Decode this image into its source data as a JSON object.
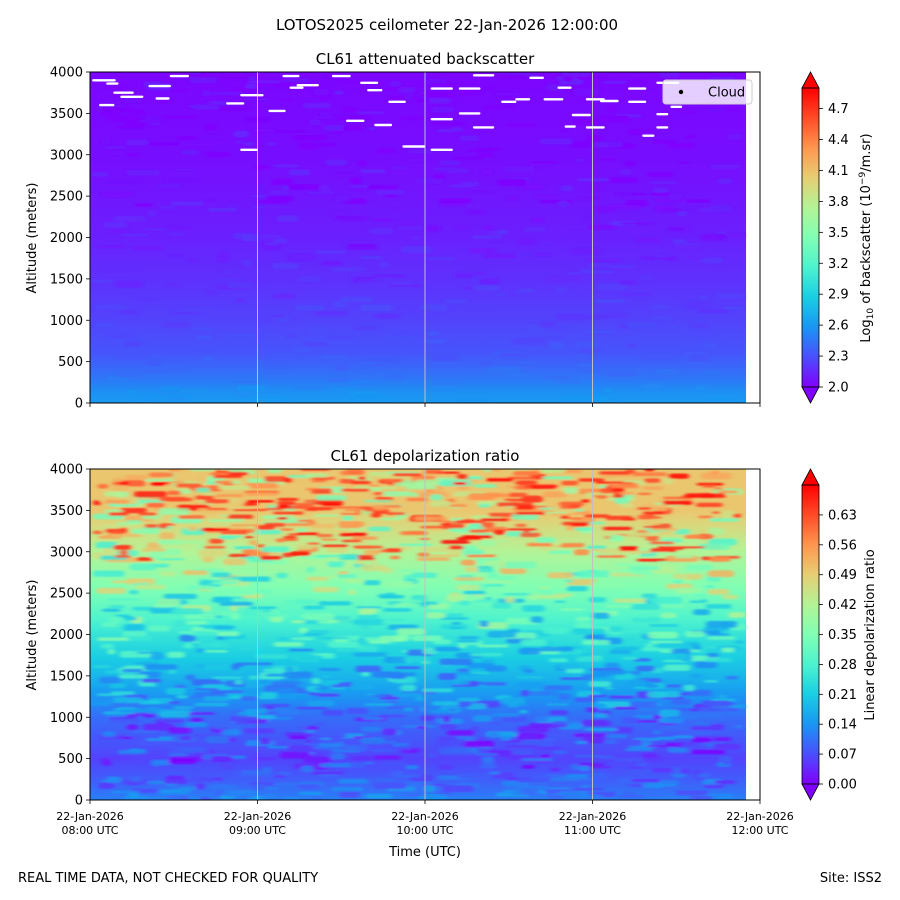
{
  "figure": {
    "suptitle": "LOTOS2025 ceilometer 22-Jan-2026 12:00:00",
    "footer_left": "REAL TIME DATA, NOT CHECKED FOR QUALITY",
    "footer_right": "Site: ISS2"
  },
  "colors": {
    "colormap": [
      "#8000ff",
      "#4b4efc",
      "#1996f3",
      "#1acee3",
      "#4df3ce",
      "#80ffb4",
      "#b3f396",
      "#e6ce74",
      "#ff964f",
      "#ff4b28",
      "#ff0000"
    ],
    "cloud_marker": "#ffffff",
    "gridline": "#c0c0c0"
  },
  "chart_data": [
    {
      "type": "heatmap",
      "title": "CL61 attenuated backscatter",
      "xlabel": "",
      "ylabel": "Altitude (meters)",
      "ylim": [
        0,
        4000
      ],
      "yticks": [
        "0",
        "500",
        "1000",
        "1500",
        "2000",
        "2500",
        "3000",
        "3500",
        "4000"
      ],
      "xlim": [
        "2026-01-22T08:00",
        "2026-01-22T12:00"
      ],
      "data_end": "2026-01-22T11:55",
      "colorbar": {
        "label_prefix": "Log",
        "label_sub": "10",
        "label_mid": " of backscatter (10",
        "label_sup": "−9",
        "label_suffix": "/m.sr)",
        "range": [
          2.0,
          4.9
        ],
        "ticks": [
          "2.0",
          "2.3",
          "2.6",
          "2.9",
          "3.2",
          "3.5",
          "3.8",
          "4.1",
          "4.4",
          "4.7"
        ]
      },
      "legend": {
        "entries": [
          "Cloud"
        ],
        "position": "top-right"
      },
      "profile": [
        {
          "altitude": 0,
          "value": 2.6
        },
        {
          "altitude": 150,
          "value": 2.55
        },
        {
          "altitude": 300,
          "value": 2.45
        },
        {
          "altitude": 600,
          "value": 2.32
        },
        {
          "altitude": 1000,
          "value": 2.25
        },
        {
          "altitude": 1500,
          "value": 2.18
        },
        {
          "altitude": 2000,
          "value": 2.12
        },
        {
          "altitude": 2500,
          "value": 2.08
        },
        {
          "altitude": 3000,
          "value": 2.05
        },
        {
          "altitude": 4000,
          "value": 2.02
        }
      ],
      "cloud_points": [
        {
          "time": "08:05",
          "altitude": 3900
        },
        {
          "time": "08:08",
          "altitude": 3860
        },
        {
          "time": "08:06",
          "altitude": 3600
        },
        {
          "time": "08:12",
          "altitude": 3750
        },
        {
          "time": "08:15",
          "altitude": 3700
        },
        {
          "time": "08:25",
          "altitude": 3830
        },
        {
          "time": "08:26",
          "altitude": 3680
        },
        {
          "time": "08:32",
          "altitude": 3950
        },
        {
          "time": "08:52",
          "altitude": 3620
        },
        {
          "time": "08:58",
          "altitude": 3720
        },
        {
          "time": "08:57",
          "altitude": 3060
        },
        {
          "time": "09:07",
          "altitude": 3530
        },
        {
          "time": "09:12",
          "altitude": 3950
        },
        {
          "time": "09:14",
          "altitude": 3810
        },
        {
          "time": "09:18",
          "altitude": 3840
        },
        {
          "time": "09:30",
          "altitude": 3950
        },
        {
          "time": "09:35",
          "altitude": 3410
        },
        {
          "time": "09:40",
          "altitude": 3870
        },
        {
          "time": "09:42",
          "altitude": 3780
        },
        {
          "time": "09:45",
          "altitude": 3360
        },
        {
          "time": "09:50",
          "altitude": 3640
        },
        {
          "time": "09:56",
          "altitude": 3100
        },
        {
          "time": "10:06",
          "altitude": 3800
        },
        {
          "time": "10:06",
          "altitude": 3430
        },
        {
          "time": "10:06",
          "altitude": 3060
        },
        {
          "time": "10:16",
          "altitude": 3800
        },
        {
          "time": "10:16",
          "altitude": 3500
        },
        {
          "time": "10:21",
          "altitude": 3330
        },
        {
          "time": "10:21",
          "altitude": 3960
        },
        {
          "time": "10:30",
          "altitude": 3640
        },
        {
          "time": "10:35",
          "altitude": 3670
        },
        {
          "time": "10:40",
          "altitude": 3930
        },
        {
          "time": "10:46",
          "altitude": 3670
        },
        {
          "time": "10:50",
          "altitude": 3810
        },
        {
          "time": "10:52",
          "altitude": 3340
        },
        {
          "time": "10:56",
          "altitude": 3480
        },
        {
          "time": "11:01",
          "altitude": 3670
        },
        {
          "time": "11:01",
          "altitude": 3330
        },
        {
          "time": "11:06",
          "altitude": 3650
        },
        {
          "time": "11:16",
          "altitude": 3640
        },
        {
          "time": "11:16",
          "altitude": 3800
        },
        {
          "time": "11:20",
          "altitude": 3230
        },
        {
          "time": "11:25",
          "altitude": 3330
        },
        {
          "time": "11:25",
          "altitude": 3490
        },
        {
          "time": "11:30",
          "altitude": 3580
        },
        {
          "time": "11:27",
          "altitude": 3870
        }
      ]
    },
    {
      "type": "heatmap",
      "title": "CL61 depolarization ratio",
      "xlabel": "Time (UTC)",
      "ylabel": "Altitude (meters)",
      "ylim": [
        0,
        4000
      ],
      "yticks": [
        "0",
        "500",
        "1000",
        "1500",
        "2000",
        "2500",
        "3000",
        "3500",
        "4000"
      ],
      "xlim": [
        "2026-01-22T08:00",
        "2026-01-22T12:00"
      ],
      "data_end": "2026-01-22T11:55",
      "xticks": [
        {
          "date": "22-Jan-2026",
          "time": "08:00 UTC"
        },
        {
          "date": "22-Jan-2026",
          "time": "09:00 UTC"
        },
        {
          "date": "22-Jan-2026",
          "time": "10:00 UTC"
        },
        {
          "date": "22-Jan-2026",
          "time": "11:00 UTC"
        },
        {
          "date": "22-Jan-2026",
          "time": "12:00 UTC"
        }
      ],
      "colorbar": {
        "label": "Linear depolarization ratio",
        "range": [
          0.0,
          0.7
        ],
        "ticks": [
          "0.00",
          "0.07",
          "0.14",
          "0.21",
          "0.28",
          "0.35",
          "0.42",
          "0.49",
          "0.56",
          "0.63"
        ]
      },
      "profile": [
        {
          "altitude": 0,
          "value": 0.12
        },
        {
          "altitude": 200,
          "value": 0.09
        },
        {
          "altitude": 500,
          "value": 0.06
        },
        {
          "altitude": 1000,
          "value": 0.1
        },
        {
          "altitude": 1500,
          "value": 0.18
        },
        {
          "altitude": 2000,
          "value": 0.25
        },
        {
          "altitude": 2500,
          "value": 0.34
        },
        {
          "altitude": 3000,
          "value": 0.42
        },
        {
          "altitude": 3500,
          "value": 0.5
        },
        {
          "altitude": 4000,
          "value": 0.5
        }
      ]
    }
  ]
}
